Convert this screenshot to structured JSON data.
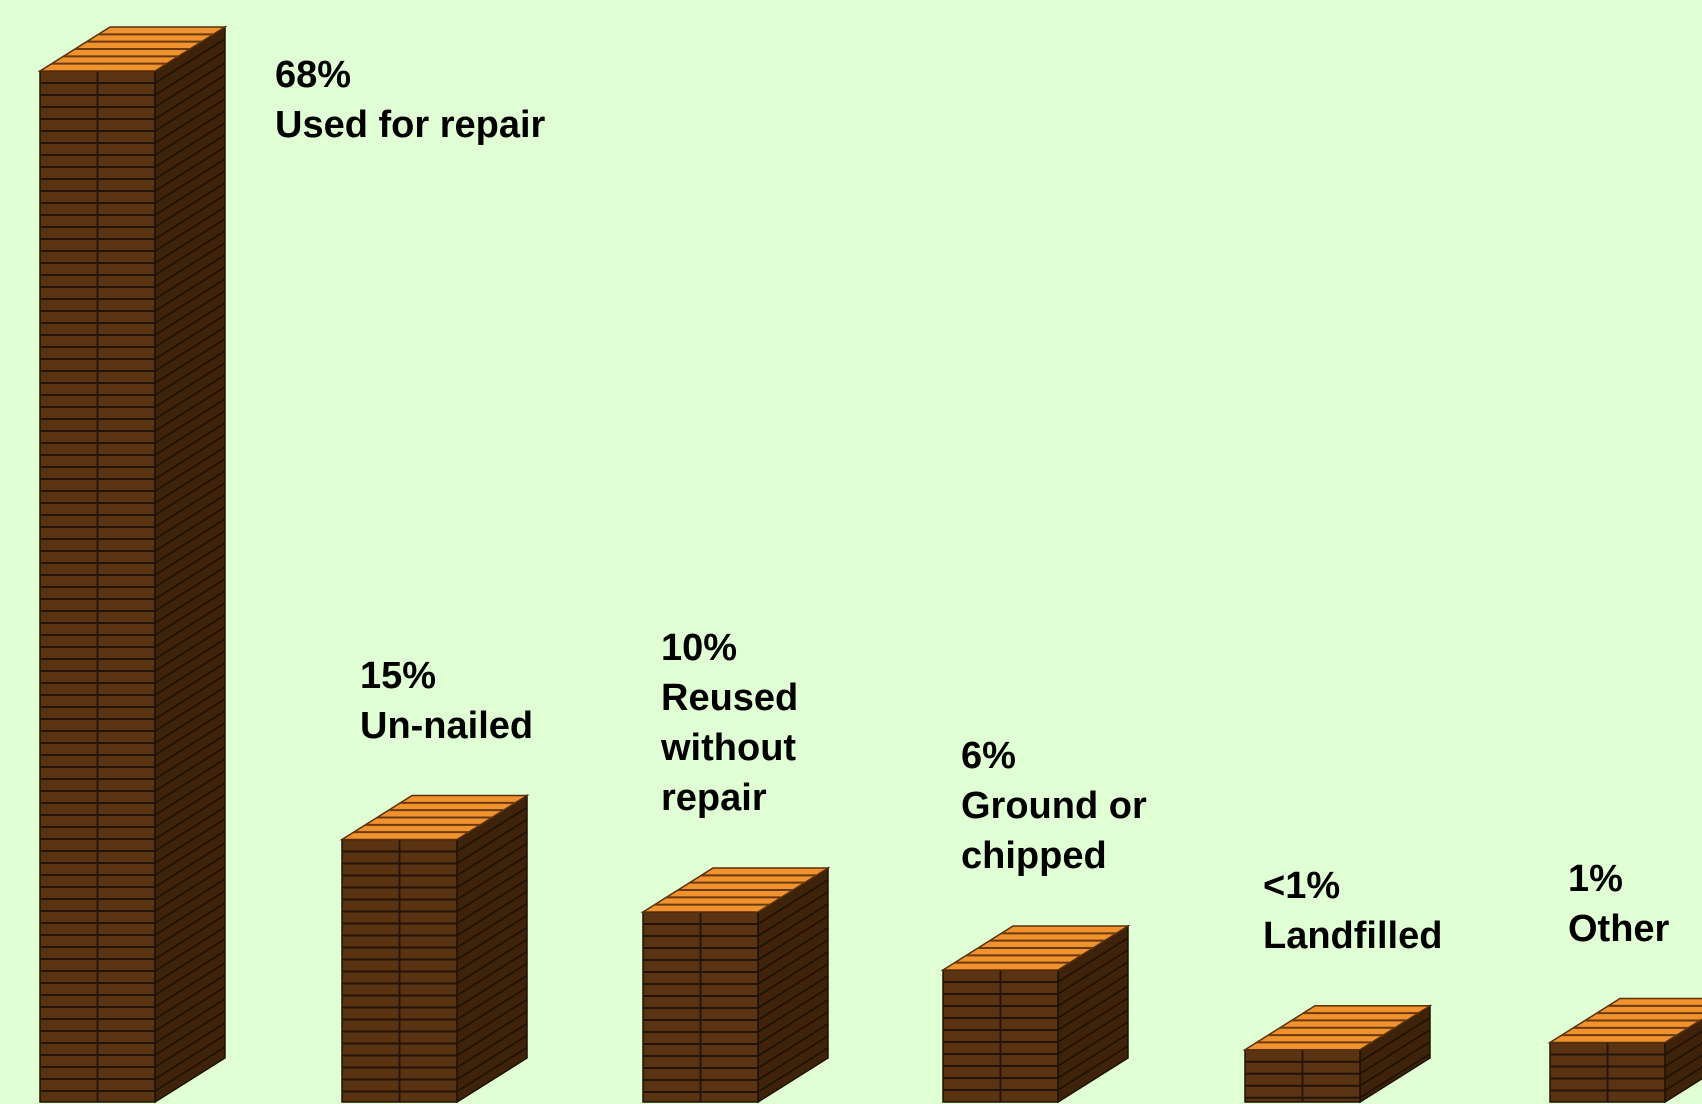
{
  "chart_data": {
    "type": "pictograph",
    "categories": [
      "Used for repair",
      "Un-nailed",
      "Reused without repair",
      "Ground or chipped",
      "Landfilled",
      "Other"
    ],
    "values": [
      68,
      15,
      10,
      6,
      0.5,
      1
    ],
    "value_labels": [
      "68%",
      "15%",
      "10%",
      "6%",
      "<1%",
      "1%"
    ],
    "color": "#5a3412"
  }
}
